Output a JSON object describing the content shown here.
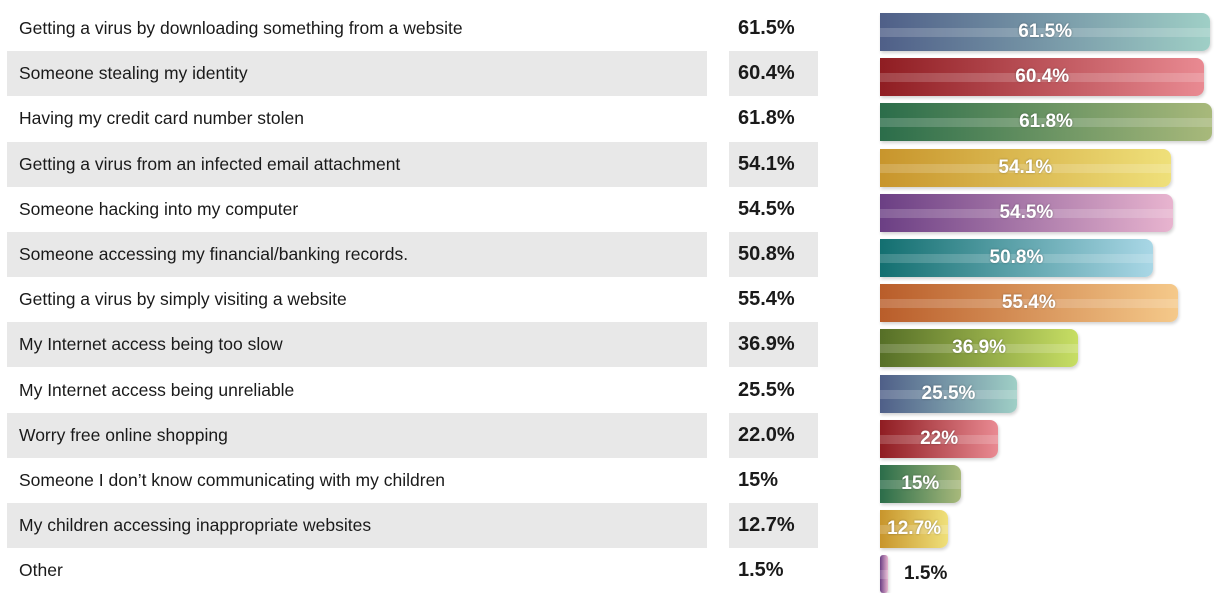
{
  "chart_data": {
    "type": "bar",
    "orientation": "horizontal",
    "title": "",
    "xlabel": "",
    "ylabel": "",
    "xlim": [
      0,
      65
    ],
    "grid": false,
    "legend": "none",
    "categories": [
      "Getting a virus by downloading something from a website",
      "Someone stealing my identity",
      "Having my credit card number stolen",
      "Getting a virus from an infected email attachment",
      "Someone hacking into my computer",
      "Someone accessing my financial/banking records.",
      "Getting a virus by simply visiting a website",
      "My Internet access being too slow",
      "My Internet access being unreliable",
      "Worry free online shopping",
      "Someone I don’t know communicating with my children",
      "My children accessing inappropriate websites",
      "Other"
    ],
    "values": [
      61.5,
      60.4,
      61.8,
      54.1,
      54.5,
      50.8,
      55.4,
      36.9,
      25.5,
      22.0,
      15,
      12.7,
      1.5
    ],
    "column_labels": [
      "61.5%",
      "60.4%",
      "61.8%",
      "54.1%",
      "54.5%",
      "50.8%",
      "55.4%",
      "36.9%",
      "25.5%",
      "22.0%",
      "15%",
      "12.7%",
      "1.5%"
    ],
    "bar_labels": [
      "61.5%",
      "60.4%",
      "61.8%",
      "54.1%",
      "54.5%",
      "50.8%",
      "55.4%",
      "36.9%",
      "25.5%",
      "22%",
      "15%",
      "12.7%",
      "1.5%"
    ],
    "colors": [
      [
        "#4f5f88",
        "#9fcfc6"
      ],
      [
        "#8f1d22",
        "#e98a92"
      ],
      [
        "#2b6d4a",
        "#a8b97b"
      ],
      [
        "#c8952c",
        "#efe07a"
      ],
      [
        "#6b3f84",
        "#e8b4cf"
      ],
      [
        "#136f70",
        "#a9d7e6"
      ],
      [
        "#b95d2a",
        "#f5c98a"
      ],
      [
        "#566f27",
        "#c7de64"
      ],
      [
        "#4f5f88",
        "#9fcfc6"
      ],
      [
        "#8f1d22",
        "#e98a92"
      ],
      [
        "#2b6d4a",
        "#a8b97b"
      ],
      [
        "#c8952c",
        "#efe07a"
      ],
      [
        "#6b3f84",
        "#e8b4cf"
      ]
    ]
  }
}
